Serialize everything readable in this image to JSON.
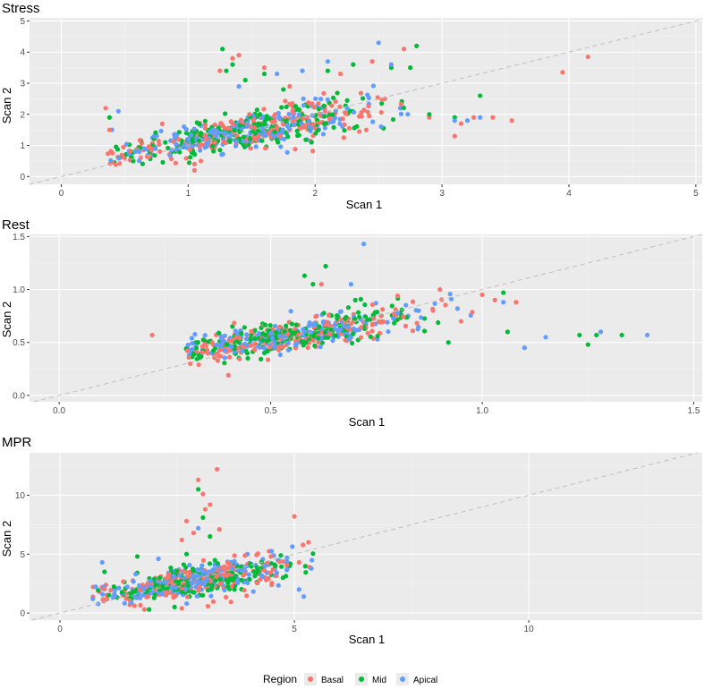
{
  "chart_data": [
    {
      "type": "scatter",
      "title": "Stress",
      "xlabel": "Scan 1",
      "ylabel": "Scan 2",
      "xlim": [
        -0.25,
        5.05
      ],
      "ylim": [
        -0.25,
        5.1
      ],
      "xticks": [
        0,
        1,
        2,
        3,
        4,
        5
      ],
      "yticks": [
        0,
        1,
        2,
        3,
        4,
        5
      ],
      "reference_line": "y = x (dashed)",
      "cluster": {
        "x_mean": 1.5,
        "x_sd": 0.55,
        "x_min": 0.35,
        "x_max": 2.8,
        "slope": 0.75,
        "intercept": 0.35,
        "noise": 0.38,
        "y_min": 0.3,
        "y_max": 4.3
      },
      "series": [
        {
          "name": "Basal",
          "points": [
            [
              0.35,
              2.2
            ],
            [
              0.38,
              1.5
            ],
            [
              0.5,
              0.6
            ],
            [
              1.05,
              0.2
            ],
            [
              1.05,
              0.4
            ],
            [
              1.1,
              0.5
            ],
            [
              1.25,
              3.4
            ],
            [
              1.35,
              3.8
            ],
            [
              1.4,
              3.9
            ],
            [
              1.6,
              3.5
            ],
            [
              1.8,
              2.9
            ],
            [
              2.2,
              3.3
            ],
            [
              2.45,
              3.7
            ],
            [
              2.55,
              2.5
            ],
            [
              2.9,
              1.9
            ],
            [
              3.1,
              1.3
            ],
            [
              3.15,
              1.7
            ],
            [
              3.25,
              1.9
            ],
            [
              3.4,
              1.9
            ],
            [
              3.55,
              1.8
            ],
            [
              3.95,
              3.35
            ],
            [
              4.15,
              3.85
            ],
            [
              2.7,
              4.1
            ]
          ]
        },
        {
          "name": "Mid",
          "points": [
            [
              0.38,
              1.9
            ],
            [
              0.42,
              0.45
            ],
            [
              1.27,
              4.1
            ],
            [
              1.3,
              3.4
            ],
            [
              1.35,
              3.6
            ],
            [
              1.45,
              3.1
            ],
            [
              1.6,
              3.3
            ],
            [
              1.75,
              2.8
            ],
            [
              2.1,
              3.4
            ],
            [
              2.3,
              3.6
            ],
            [
              2.6,
              3.5
            ],
            [
              2.8,
              4.2
            ],
            [
              2.9,
              2.0
            ],
            [
              3.1,
              1.9
            ],
            [
              3.3,
              2.6
            ],
            [
              2.75,
              3.5
            ]
          ]
        },
        {
          "name": "Apical",
          "points": [
            [
              0.4,
              1.5
            ],
            [
              0.45,
              2.1
            ],
            [
              1.4,
              2.9
            ],
            [
              1.7,
              3.3
            ],
            [
              1.9,
              3.4
            ],
            [
              2.1,
              3.7
            ],
            [
              2.5,
              4.3
            ],
            [
              2.6,
              3.6
            ],
            [
              3.1,
              1.8
            ],
            [
              3.2,
              1.8
            ],
            [
              3.3,
              1.9
            ]
          ]
        }
      ]
    },
    {
      "type": "scatter",
      "title": "Rest",
      "xlabel": "Scan 1",
      "ylabel": "Scan 2",
      "xlim": [
        -0.07,
        1.52
      ],
      "ylim": [
        -0.06,
        1.52
      ],
      "xticks": [
        0.0,
        0.5,
        1.0,
        1.5
      ],
      "yticks": [
        0.0,
        0.5,
        1.0,
        1.5
      ],
      "reference_line": "y = x (dashed)",
      "cluster": {
        "x_mean": 0.56,
        "x_sd": 0.14,
        "x_min": 0.3,
        "x_max": 1.05,
        "slope": 0.6,
        "intercept": 0.24,
        "noise": 0.1,
        "y_min": 0.2,
        "y_max": 1.15
      },
      "series": [
        {
          "name": "Basal",
          "points": [
            [
              0.22,
              0.57
            ],
            [
              0.31,
              0.3
            ],
            [
              0.33,
              0.29
            ],
            [
              0.4,
              0.19
            ],
            [
              0.62,
              1.05
            ],
            [
              0.9,
              1.0
            ],
            [
              1.0,
              0.95
            ],
            [
              1.03,
              0.9
            ],
            [
              1.08,
              0.88
            ],
            [
              0.95,
              0.7
            ],
            [
              0.8,
              0.94
            ]
          ]
        },
        {
          "name": "Mid",
          "points": [
            [
              0.58,
              1.13
            ],
            [
              0.6,
              1.05
            ],
            [
              0.63,
              1.22
            ],
            [
              0.92,
              0.5
            ],
            [
              1.05,
              0.97
            ],
            [
              1.06,
              0.6
            ],
            [
              1.23,
              0.57
            ],
            [
              1.25,
              0.48
            ],
            [
              1.27,
              0.57
            ],
            [
              1.33,
              0.57
            ],
            [
              0.7,
              0.9
            ]
          ]
        },
        {
          "name": "Apical",
          "points": [
            [
              0.72,
              1.43
            ],
            [
              0.69,
              1.05
            ],
            [
              1.1,
              0.45
            ],
            [
              1.15,
              0.55
            ],
            [
              1.28,
              0.6
            ],
            [
              1.39,
              0.57
            ],
            [
              1.05,
              0.88
            ],
            [
              0.85,
              0.8
            ]
          ]
        }
      ]
    },
    {
      "type": "scatter",
      "title": "MPR",
      "xlabel": "Scan 1",
      "ylabel": "Scan 2",
      "xlim": [
        -0.65,
        13.7
      ],
      "ylim": [
        -0.6,
        13.6
      ],
      "xticks": [
        0,
        5,
        10
      ],
      "yticks": [
        0,
        5,
        10
      ],
      "reference_line": "y = x (dashed)",
      "cluster": {
        "x_mean": 2.9,
        "x_sd": 0.95,
        "x_min": 0.7,
        "x_max": 5.4,
        "slope": 0.6,
        "intercept": 1.0,
        "noise": 0.85,
        "y_min": 0.3,
        "y_max": 6.0
      },
      "series": [
        {
          "name": "Basal",
          "points": [
            [
              3.35,
              12.2
            ],
            [
              2.95,
              11.3
            ],
            [
              3.05,
              10.1
            ],
            [
              3.2,
              9.2
            ],
            [
              3.1,
              8.8
            ],
            [
              2.7,
              7.8
            ],
            [
              3.4,
              7.1
            ],
            [
              2.85,
              6.8
            ],
            [
              2.6,
              6.2
            ],
            [
              5.0,
              8.2
            ],
            [
              5.3,
              6.0
            ],
            [
              1.8,
              0.3
            ],
            [
              2.6,
              0.4
            ],
            [
              4.5,
              4.8
            ],
            [
              5.1,
              4.3
            ]
          ]
        },
        {
          "name": "Mid",
          "points": [
            [
              2.95,
              10.5
            ],
            [
              3.05,
              8.1
            ],
            [
              3.2,
              6.5
            ],
            [
              1.65,
              4.8
            ],
            [
              0.95,
              3.5
            ],
            [
              2.7,
              5.0
            ],
            [
              1.9,
              0.3
            ]
          ]
        },
        {
          "name": "Apical",
          "points": [
            [
              2.95,
              7.2
            ],
            [
              0.9,
              4.3
            ],
            [
              0.7,
              1.2
            ],
            [
              5.1,
              2.0
            ],
            [
              5.2,
              1.4
            ],
            [
              3.8,
              3.6
            ],
            [
              4.0,
              5.0
            ],
            [
              3.3,
              4.1
            ],
            [
              2.1,
              4.6
            ]
          ]
        }
      ]
    }
  ],
  "legend": {
    "title": "Region",
    "items": [
      {
        "label": "Basal",
        "color": "#F8766D"
      },
      {
        "label": "Mid",
        "color": "#00BA38"
      },
      {
        "label": "Apical",
        "color": "#619CFF"
      }
    ]
  },
  "colors": {
    "panel_bg": "#EBEBEB",
    "grid_major": "#FFFFFF",
    "grid_minor": "#F5F5F5",
    "ref_line": "#BEBEBE"
  }
}
